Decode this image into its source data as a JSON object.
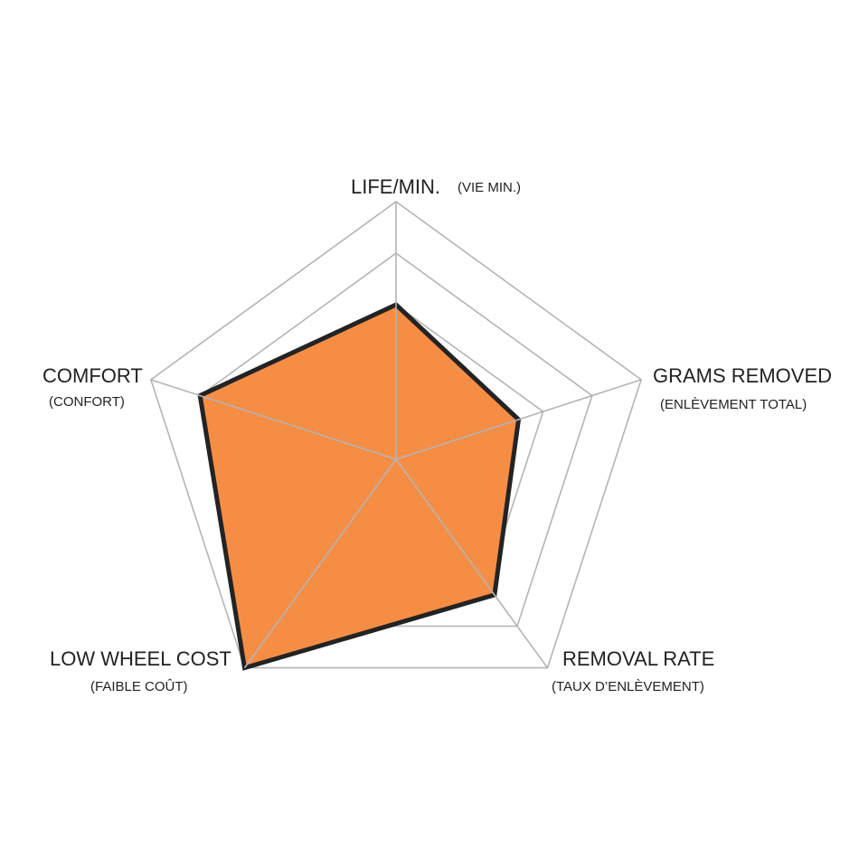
{
  "chart_data": {
    "type": "radar",
    "axes": [
      {
        "key": "life",
        "label": "LIFE/MIN.",
        "sublabel": "(VIE MIN.)"
      },
      {
        "key": "grams",
        "label": "GRAMS REMOVED",
        "sublabel": "(ENLÈVEMENT TOTAL)"
      },
      {
        "key": "removal",
        "label": "REMOVAL RATE",
        "sublabel": "(TAUX D’ENLÈVEMENT)"
      },
      {
        "key": "cost",
        "label": "LOW WHEEL COST",
        "sublabel": "(FAIBLE COÛT)"
      },
      {
        "key": "comfort",
        "label": "COMFORT",
        "sublabel": "(CONFORT)"
      }
    ],
    "rings": 5,
    "scale_max": 10,
    "series": [
      {
        "values": [
          6,
          5,
          6.5,
          10,
          8
        ]
      }
    ],
    "grid": true,
    "colors": {
      "fill": "#f68d45",
      "stroke": "#232323",
      "grid": "#b4b4b4"
    }
  }
}
